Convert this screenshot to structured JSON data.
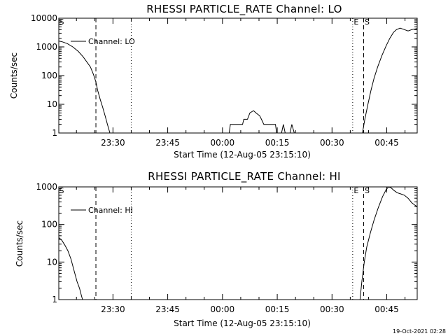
{
  "footer": {
    "timestamp": "19-Oct-2021 02:28"
  },
  "chart_data": [
    {
      "type": "line",
      "title": "RHESSI PARTICLE_RATE Channel: LO",
      "xlabel": "Start Time (12-Aug-05 23:15:10)",
      "ylabel": "Counts/sec",
      "yscale": "log",
      "ylim": [
        1,
        10000
      ],
      "xlim": [
        0,
        5890
      ],
      "x_unit": "seconds since 12-Aug-05 23:15:10",
      "y_ticks": [
        {
          "v": 1,
          "label": "1"
        },
        {
          "v": 10,
          "label": "10"
        },
        {
          "v": 100,
          "label": "100"
        },
        {
          "v": 1000,
          "label": "1000"
        },
        {
          "v": 10000,
          "label": "10000"
        }
      ],
      "x_ticks": [
        {
          "t": 890,
          "label": "23:30"
        },
        {
          "t": 1790,
          "label": "23:45"
        },
        {
          "t": 2690,
          "label": "00:00"
        },
        {
          "t": 3590,
          "label": "00:15"
        },
        {
          "t": 4490,
          "label": "00:30"
        },
        {
          "t": 5390,
          "label": "00:45"
        }
      ],
      "legend": {
        "label": "Channel: LO",
        "position": "top-left"
      },
      "markers": [
        {
          "t": 0,
          "style": "dashed",
          "label": "S"
        },
        {
          "t": 610,
          "style": "dashed",
          "label": ""
        },
        {
          "t": 1190,
          "style": "dotted",
          "label": ""
        },
        {
          "t": 4830,
          "style": "dotted",
          "label": "E"
        },
        {
          "t": 5010,
          "style": "dashed",
          "label": "S"
        },
        {
          "t": 5890,
          "style": "dashdot",
          "label": ""
        }
      ],
      "series": [
        {
          "name": "Channel: LO",
          "segments": [
            [
              [
                0,
                1600
              ],
              [
                60,
                1500
              ],
              [
                140,
                1300
              ],
              [
                230,
                1000
              ],
              [
                320,
                700
              ],
              [
                400,
                450
              ],
              [
                460,
                300
              ],
              [
                520,
                200
              ],
              [
                570,
                110
              ],
              [
                610,
                60
              ],
              [
                640,
                30
              ],
              [
                680,
                15
              ],
              [
                720,
                8
              ],
              [
                760,
                4
              ],
              [
                800,
                2
              ],
              [
                840,
                1
              ]
            ],
            [
              [
                2800,
                1
              ],
              [
                2820,
                2
              ],
              [
                3020,
                2
              ],
              [
                3040,
                3
              ],
              [
                3100,
                3
              ],
              [
                3140,
                5
              ],
              [
                3200,
                6
              ],
              [
                3240,
                5
              ],
              [
                3300,
                4
              ],
              [
                3330,
                3
              ],
              [
                3370,
                2
              ],
              [
                3560,
                2
              ],
              [
                3580,
                1
              ]
            ],
            [
              [
                3660,
                1
              ],
              [
                3690,
                2
              ],
              [
                3720,
                1
              ],
              [
                3800,
                1
              ],
              [
                3830,
                2
              ],
              [
                3870,
                1
              ]
            ],
            [
              [
                4990,
                1
              ],
              [
                5030,
                3
              ],
              [
                5080,
                10
              ],
              [
                5130,
                30
              ],
              [
                5180,
                80
              ],
              [
                5240,
                200
              ],
              [
                5310,
                500
              ],
              [
                5380,
                1100
              ],
              [
                5440,
                2000
              ],
              [
                5500,
                3200
              ],
              [
                5550,
                4000
              ],
              [
                5610,
                4500
              ],
              [
                5680,
                4000
              ],
              [
                5740,
                3600
              ],
              [
                5800,
                4000
              ],
              [
                5880,
                4300
              ],
              [
                5890,
                4400
              ]
            ]
          ]
        }
      ]
    },
    {
      "type": "line",
      "title": "RHESSI PARTICLE_RATE Channel: HI",
      "xlabel": "Start Time (12-Aug-05 23:15:10)",
      "ylabel": "Counts/sec",
      "yscale": "log",
      "ylim": [
        1,
        1000
      ],
      "xlim": [
        0,
        5890
      ],
      "x_unit": "seconds since 12-Aug-05 23:15:10",
      "y_ticks": [
        {
          "v": 1,
          "label": "1"
        },
        {
          "v": 10,
          "label": "10"
        },
        {
          "v": 100,
          "label": "100"
        },
        {
          "v": 1000,
          "label": "1000"
        }
      ],
      "x_ticks": [
        {
          "t": 890,
          "label": "23:30"
        },
        {
          "t": 1790,
          "label": "23:45"
        },
        {
          "t": 2690,
          "label": "00:00"
        },
        {
          "t": 3590,
          "label": "00:15"
        },
        {
          "t": 4490,
          "label": "00:30"
        },
        {
          "t": 5390,
          "label": "00:45"
        }
      ],
      "legend": {
        "label": "Channel: HI",
        "position": "top-left"
      },
      "markers": [
        {
          "t": 0,
          "style": "dashed",
          "label": "S"
        },
        {
          "t": 610,
          "style": "dashed",
          "label": ""
        },
        {
          "t": 1190,
          "style": "dotted",
          "label": ""
        },
        {
          "t": 4830,
          "style": "dotted",
          "label": "E"
        },
        {
          "t": 5010,
          "style": "dashed",
          "label": "S"
        },
        {
          "t": 5890,
          "style": "dashdot",
          "label": ""
        }
      ],
      "series": [
        {
          "name": "Channel: HI",
          "segments": [
            [
              [
                0,
                45
              ],
              [
                50,
                38
              ],
              [
                100,
                28
              ],
              [
                150,
                20
              ],
              [
                200,
                12
              ],
              [
                250,
                6
              ],
              [
                300,
                3
              ],
              [
                340,
                2
              ],
              [
                370,
                1.3
              ],
              [
                390,
                1
              ]
            ],
            [
              [
                4950,
                1
              ],
              [
                4980,
                3
              ],
              [
                5020,
                10
              ],
              [
                5060,
                25
              ],
              [
                5120,
                60
              ],
              [
                5180,
                130
              ],
              [
                5250,
                280
              ],
              [
                5320,
                550
              ],
              [
                5380,
                850
              ],
              [
                5420,
                1000
              ],
              [
                5460,
                950
              ],
              [
                5510,
                800
              ],
              [
                5560,
                700
              ],
              [
                5620,
                650
              ],
              [
                5680,
                600
              ],
              [
                5740,
                500
              ],
              [
                5800,
                380
              ],
              [
                5860,
                320
              ],
              [
                5890,
                300
              ]
            ]
          ]
        }
      ]
    }
  ]
}
